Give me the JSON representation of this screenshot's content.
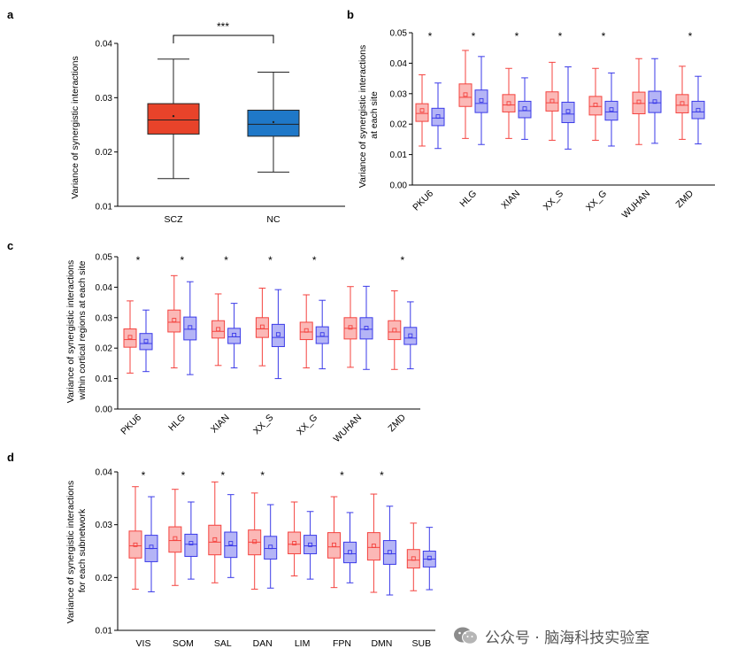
{
  "watermark": "公众号 · 脑海科技实验室",
  "chart_data": [
    {
      "panel": "a",
      "type": "box",
      "ylabel": "Variance of synergistic interactions",
      "ylim": [
        0.01,
        0.04
      ],
      "yticks": [
        0.01,
        0.02,
        0.03,
        0.04
      ],
      "categories": [
        "SCZ",
        "NC"
      ],
      "colors": {
        "SCZ": "#e8432a",
        "NC": "#1f78c8"
      },
      "boxes": [
        {
          "min": 0.0151,
          "q1": 0.0233,
          "median": 0.0259,
          "mean": 0.0266,
          "q3": 0.0289,
          "max": 0.0371
        },
        {
          "min": 0.0163,
          "q1": 0.0229,
          "median": 0.0251,
          "mean": 0.0255,
          "q3": 0.0277,
          "max": 0.0347
        }
      ],
      "significance": {
        "pairs": [
          "SCZ",
          "NC"
        ],
        "label": "***"
      }
    },
    {
      "panel": "b",
      "type": "box",
      "ylabel": "Variance of synergistic interactions at each site",
      "ylim": [
        0.0,
        0.05
      ],
      "yticks": [
        0.0,
        0.01,
        0.02,
        0.03,
        0.04,
        0.05
      ],
      "categories": [
        "PKU6",
        "HLG",
        "XIAN",
        "XX_S",
        "XX_G",
        "WUHAN",
        "ZMD"
      ],
      "significance": [
        "*",
        "*",
        "*",
        "*",
        "*",
        "",
        "*"
      ],
      "series": [
        {
          "group": "SCZ",
          "color": "#f4433f",
          "boxes": [
            {
              "min": 0.0128,
              "q1": 0.0209,
              "median": 0.0235,
              "mean": 0.0245,
              "q3": 0.0267,
              "max": 0.0362
            },
            {
              "min": 0.0153,
              "q1": 0.0258,
              "median": 0.0288,
              "mean": 0.0297,
              "q3": 0.0332,
              "max": 0.0442
            },
            {
              "min": 0.0153,
              "q1": 0.024,
              "median": 0.0263,
              "mean": 0.0268,
              "q3": 0.0297,
              "max": 0.0383
            },
            {
              "min": 0.0147,
              "q1": 0.0243,
              "median": 0.027,
              "mean": 0.0276,
              "q3": 0.0306,
              "max": 0.0403
            },
            {
              "min": 0.0147,
              "q1": 0.023,
              "median": 0.0258,
              "mean": 0.0263,
              "q3": 0.0291,
              "max": 0.0383
            },
            {
              "min": 0.0133,
              "q1": 0.0234,
              "median": 0.0268,
              "mean": 0.0273,
              "q3": 0.0305,
              "max": 0.0415
            },
            {
              "min": 0.015,
              "q1": 0.0237,
              "median": 0.0262,
              "mean": 0.0268,
              "q3": 0.0297,
              "max": 0.039
            }
          ]
        },
        {
          "group": "NC",
          "color": "#3a3ae8",
          "boxes": [
            {
              "min": 0.012,
              "q1": 0.0195,
              "median": 0.022,
              "mean": 0.0225,
              "q3": 0.0252,
              "max": 0.0335
            },
            {
              "min": 0.0133,
              "q1": 0.0238,
              "median": 0.0268,
              "mean": 0.0278,
              "q3": 0.0312,
              "max": 0.0422
            },
            {
              "min": 0.015,
              "q1": 0.0221,
              "median": 0.0244,
              "mean": 0.0251,
              "q3": 0.0275,
              "max": 0.0352
            },
            {
              "min": 0.0118,
              "q1": 0.0205,
              "median": 0.0233,
              "mean": 0.0242,
              "q3": 0.0272,
              "max": 0.0388
            },
            {
              "min": 0.0128,
              "q1": 0.0213,
              "median": 0.024,
              "mean": 0.0248,
              "q3": 0.0275,
              "max": 0.0368
            },
            {
              "min": 0.0137,
              "q1": 0.0238,
              "median": 0.027,
              "mean": 0.0274,
              "q3": 0.0308,
              "max": 0.0415
            },
            {
              "min": 0.0135,
              "q1": 0.0218,
              "median": 0.024,
              "mean": 0.0246,
              "q3": 0.0275,
              "max": 0.0357
            }
          ]
        }
      ]
    },
    {
      "panel": "c",
      "type": "box",
      "ylabel": "Variance of synergistic interactions within cortical regions at each site",
      "ylim": [
        0.0,
        0.05
      ],
      "yticks": [
        0.0,
        0.01,
        0.02,
        0.03,
        0.04,
        0.05
      ],
      "categories": [
        "PKU6",
        "HLG",
        "XIAN",
        "XX_S",
        "XX_G",
        "WUHAN",
        "ZMD"
      ],
      "significance": [
        "*",
        "*",
        "*",
        "*",
        "*",
        "",
        "*"
      ],
      "series": [
        {
          "group": "SCZ",
          "color": "#f4433f",
          "boxes": [
            {
              "min": 0.0118,
              "q1": 0.0203,
              "median": 0.0228,
              "mean": 0.0236,
              "q3": 0.0263,
              "max": 0.0355
            },
            {
              "min": 0.0135,
              "q1": 0.0253,
              "median": 0.0285,
              "mean": 0.0292,
              "q3": 0.0325,
              "max": 0.0438
            },
            {
              "min": 0.0143,
              "q1": 0.0233,
              "median": 0.0255,
              "mean": 0.0262,
              "q3": 0.029,
              "max": 0.0378
            },
            {
              "min": 0.0142,
              "q1": 0.0235,
              "median": 0.0263,
              "mean": 0.027,
              "q3": 0.03,
              "max": 0.0397
            },
            {
              "min": 0.0135,
              "q1": 0.0228,
              "median": 0.0253,
              "mean": 0.0258,
              "q3": 0.0285,
              "max": 0.0375
            },
            {
              "min": 0.0137,
              "q1": 0.023,
              "median": 0.0265,
              "mean": 0.0268,
              "q3": 0.03,
              "max": 0.0402
            },
            {
              "min": 0.013,
              "q1": 0.0228,
              "median": 0.0253,
              "mean": 0.0259,
              "q3": 0.029,
              "max": 0.0388
            }
          ]
        },
        {
          "group": "NC",
          "color": "#3a3ae8",
          "boxes": [
            {
              "min": 0.0123,
              "q1": 0.0195,
              "median": 0.0215,
              "mean": 0.0223,
              "q3": 0.0248,
              "max": 0.0325
            },
            {
              "min": 0.0113,
              "q1": 0.0227,
              "median": 0.0262,
              "mean": 0.0268,
              "q3": 0.0302,
              "max": 0.0418
            },
            {
              "min": 0.0135,
              "q1": 0.0215,
              "median": 0.0237,
              "mean": 0.0243,
              "q3": 0.0265,
              "max": 0.0347
            },
            {
              "min": 0.01,
              "q1": 0.0205,
              "median": 0.0235,
              "mean": 0.0245,
              "q3": 0.0278,
              "max": 0.0392
            },
            {
              "min": 0.0132,
              "q1": 0.0215,
              "median": 0.0238,
              "mean": 0.0245,
              "q3": 0.027,
              "max": 0.0357
            },
            {
              "min": 0.013,
              "q1": 0.023,
              "median": 0.0262,
              "mean": 0.0266,
              "q3": 0.03,
              "max": 0.0403
            },
            {
              "min": 0.0132,
              "q1": 0.0212,
              "median": 0.0233,
              "mean": 0.0241,
              "q3": 0.0268,
              "max": 0.0352
            }
          ]
        }
      ]
    },
    {
      "panel": "d",
      "type": "box",
      "ylabel": "Variance of synergistic interactions for each subnetwork",
      "ylim": [
        0.01,
        0.04
      ],
      "yticks": [
        0.01,
        0.02,
        0.03,
        0.04
      ],
      "categories": [
        "VIS",
        "SOM",
        "SAL",
        "DAN",
        "LIM",
        "FPN",
        "DMN",
        "SUB"
      ],
      "significance": [
        "*",
        "*",
        "*",
        "*",
        "",
        "*",
        "*",
        ""
      ],
      "series": [
        {
          "group": "SCZ",
          "color": "#f4433f",
          "boxes": [
            {
              "min": 0.0178,
              "q1": 0.0237,
              "median": 0.026,
              "mean": 0.0262,
              "q3": 0.0288,
              "max": 0.0372
            },
            {
              "min": 0.0185,
              "q1": 0.0248,
              "median": 0.027,
              "mean": 0.0274,
              "q3": 0.0296,
              "max": 0.0367
            },
            {
              "min": 0.019,
              "q1": 0.0243,
              "median": 0.0267,
              "mean": 0.0272,
              "q3": 0.0299,
              "max": 0.0381
            },
            {
              "min": 0.0178,
              "q1": 0.0243,
              "median": 0.0267,
              "mean": 0.0268,
              "q3": 0.029,
              "max": 0.036
            },
            {
              "min": 0.0203,
              "q1": 0.0245,
              "median": 0.0263,
              "mean": 0.0265,
              "q3": 0.0286,
              "max": 0.0343
            },
            {
              "min": 0.0181,
              "q1": 0.0237,
              "median": 0.0258,
              "mean": 0.0262,
              "q3": 0.0285,
              "max": 0.0353
            },
            {
              "min": 0.0172,
              "q1": 0.0233,
              "median": 0.0257,
              "mean": 0.026,
              "q3": 0.0285,
              "max": 0.0358
            },
            {
              "min": 0.0175,
              "q1": 0.0218,
              "median": 0.0233,
              "mean": 0.0236,
              "q3": 0.0253,
              "max": 0.0303
            }
          ]
        },
        {
          "group": "NC",
          "color": "#3a3ae8",
          "boxes": [
            {
              "min": 0.0173,
              "q1": 0.023,
              "median": 0.0255,
              "mean": 0.0258,
              "q3": 0.028,
              "max": 0.0353
            },
            {
              "min": 0.0197,
              "q1": 0.024,
              "median": 0.0263,
              "mean": 0.0265,
              "q3": 0.0282,
              "max": 0.0343
            },
            {
              "min": 0.02,
              "q1": 0.0238,
              "median": 0.026,
              "mean": 0.0265,
              "q3": 0.0286,
              "max": 0.0357
            },
            {
              "min": 0.018,
              "q1": 0.0235,
              "median": 0.0255,
              "mean": 0.0258,
              "q3": 0.0278,
              "max": 0.0338
            },
            {
              "min": 0.0197,
              "q1": 0.0245,
              "median": 0.026,
              "mean": 0.0262,
              "q3": 0.028,
              "max": 0.0325
            },
            {
              "min": 0.019,
              "q1": 0.0228,
              "median": 0.0245,
              "mean": 0.0248,
              "q3": 0.0267,
              "max": 0.0323
            },
            {
              "min": 0.0167,
              "q1": 0.0225,
              "median": 0.0245,
              "mean": 0.0248,
              "q3": 0.027,
              "max": 0.0335
            },
            {
              "min": 0.0177,
              "q1": 0.022,
              "median": 0.0235,
              "mean": 0.0237,
              "q3": 0.025,
              "max": 0.0295
            }
          ]
        }
      ]
    }
  ]
}
